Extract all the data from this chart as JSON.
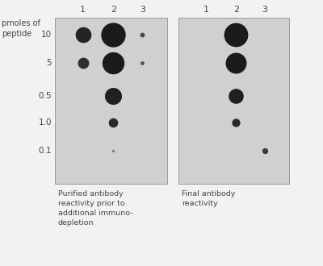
{
  "panel1_label": "Purified antibody\nreactivity prior to\nadditional immuno-\ndepletion",
  "panel2_label": "Final antibody\nreactivity",
  "panel_bg": "#d0d0d0",
  "panel_border": "#999999",
  "dot_color": "#111111",
  "fig_bg": "#f2f2f2",
  "col_labels": [
    "1",
    "2",
    "3"
  ],
  "row_labels": [
    "10",
    "5",
    "0.5",
    "1.0",
    "0.1"
  ],
  "panel1_dots": [
    {
      "row": 0,
      "col": 0,
      "size": 200,
      "alpha": 0.9
    },
    {
      "row": 0,
      "col": 1,
      "size": 480,
      "alpha": 0.95
    },
    {
      "row": 0,
      "col": 2,
      "size": 18,
      "alpha": 0.7
    },
    {
      "row": 1,
      "col": 0,
      "size": 100,
      "alpha": 0.85
    },
    {
      "row": 1,
      "col": 1,
      "size": 390,
      "alpha": 0.95
    },
    {
      "row": 1,
      "col": 2,
      "size": 12,
      "alpha": 0.65
    },
    {
      "row": 2,
      "col": 1,
      "size": 230,
      "alpha": 0.92
    },
    {
      "row": 3,
      "col": 1,
      "size": 70,
      "alpha": 0.88
    },
    {
      "row": 4,
      "col": 1,
      "size": 5,
      "alpha": 0.5
    }
  ],
  "panel2_dots": [
    {
      "row": 0,
      "col": 1,
      "size": 460,
      "alpha": 0.95
    },
    {
      "row": 1,
      "col": 1,
      "size": 350,
      "alpha": 0.95
    },
    {
      "row": 2,
      "col": 1,
      "size": 180,
      "alpha": 0.92
    },
    {
      "row": 3,
      "col": 1,
      "size": 55,
      "alpha": 0.88
    },
    {
      "row": 4,
      "col": 2,
      "size": 28,
      "alpha": 0.78
    }
  ]
}
